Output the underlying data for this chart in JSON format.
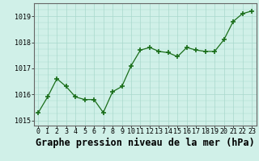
{
  "x": [
    0,
    1,
    2,
    3,
    4,
    5,
    6,
    7,
    8,
    9,
    10,
    11,
    12,
    13,
    14,
    15,
    16,
    17,
    18,
    19,
    20,
    21,
    22,
    23
  ],
  "y": [
    1015.3,
    1015.9,
    1016.6,
    1016.3,
    1015.9,
    1015.8,
    1015.8,
    1015.3,
    1016.1,
    1016.3,
    1017.1,
    1017.7,
    1017.8,
    1017.65,
    1017.6,
    1017.45,
    1017.8,
    1017.7,
    1017.65,
    1017.65,
    1018.1,
    1018.8,
    1019.1,
    1019.2
  ],
  "line_color": "#1a6e1a",
  "marker_color": "#1a6e1a",
  "bg_color": "#d0f0e8",
  "grid_color": "#a8d8cc",
  "title": "Graphe pression niveau de la mer (hPa)",
  "yticks": [
    1015,
    1016,
    1017,
    1018,
    1019
  ],
  "xticks": [
    0,
    1,
    2,
    3,
    4,
    5,
    6,
    7,
    8,
    9,
    10,
    11,
    12,
    13,
    14,
    15,
    16,
    17,
    18,
    19,
    20,
    21,
    22,
    23
  ],
  "ylim": [
    1014.8,
    1019.5
  ],
  "xlim": [
    -0.5,
    23.5
  ],
  "title_fontsize": 8.5,
  "tick_fontsize": 6,
  "border_color": "#999999",
  "axis_color": "#666666"
}
